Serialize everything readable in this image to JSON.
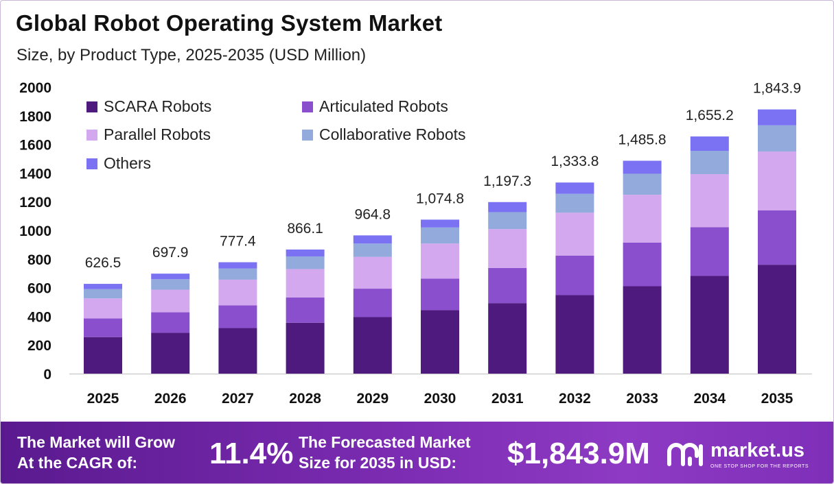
{
  "title": "Global Robot Operating System Market",
  "subtitle": "Size, by Product Type, 2025-2035 (USD Million)",
  "chart_data": {
    "type": "bar",
    "stacked": true,
    "categories": [
      "2025",
      "2026",
      "2027",
      "2028",
      "2029",
      "2030",
      "2031",
      "2032",
      "2033",
      "2034",
      "2035"
    ],
    "series": [
      {
        "name": "SCARA Robots",
        "color": "#4e1a7e",
        "values": [
          255,
          285,
          318,
          355,
          395,
          443,
          492,
          548,
          610,
          682,
          760
        ]
      },
      {
        "name": "Articulated Robots",
        "color": "#8a4fcc",
        "values": [
          130,
          143,
          158,
          177,
          198,
          220,
          245,
          275,
          305,
          340,
          380
        ]
      },
      {
        "name": "Parallel Robots",
        "color": "#d4a8ee",
        "values": [
          140,
          158,
          180,
          198,
          222,
          245,
          272,
          300,
          333,
          370,
          410
        ]
      },
      {
        "name": "Collaborative Robots",
        "color": "#93aadc",
        "values": [
          65,
          73,
          78,
          88,
          93,
          112,
          118,
          132,
          147,
          163,
          183
        ]
      },
      {
        "name": "Others",
        "color": "#7a72f2",
        "values": [
          36.5,
          38.9,
          43.4,
          48.1,
          56.8,
          54.8,
          70.3,
          78.8,
          90.8,
          100.2,
          110.9
        ]
      }
    ],
    "totals": [
      "626.5",
      "697.9",
      "777.4",
      "866.1",
      "964.8",
      "1,074.8",
      "1,197.3",
      "1,333.8",
      "1,485.8",
      "1,655.2",
      "1,843.9"
    ],
    "yticks": [
      "0",
      "200",
      "400",
      "600",
      "800",
      "1000",
      "1200",
      "1400",
      "1600",
      "1800",
      "2000"
    ],
    "ylim": [
      0,
      2000
    ],
    "legend_position": "top-left",
    "grid": false
  },
  "footer": {
    "cagr_text_line1": "The Market will Grow",
    "cagr_text_line2": "At the CAGR of:",
    "cagr_value": "11.4%",
    "forecast_text_line1": "The Forecasted Market",
    "forecast_text_line2": "Size for 2035 in USD:",
    "forecast_value": "$1,843.9M",
    "logo_name": "market.us",
    "logo_tagline": "ONE STOP SHOP FOR THE REPORTS"
  }
}
